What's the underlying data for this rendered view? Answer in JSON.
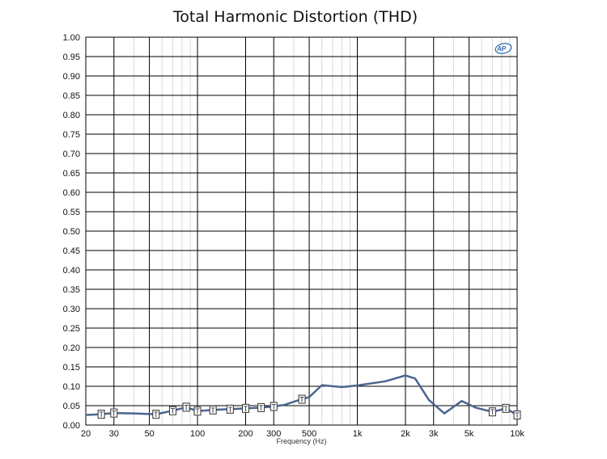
{
  "chart_data": {
    "type": "line",
    "title": "Total Harmonic Distortion (THD)",
    "xlabel": "Frequency (Hz)",
    "ylabel": "",
    "x_scale": "log",
    "xlim": [
      20,
      10000
    ],
    "ylim": [
      0,
      1.0
    ],
    "grid": true,
    "x_tick_values": [
      20,
      30,
      50,
      100,
      200,
      300,
      500,
      1000,
      2000,
      3000,
      5000,
      10000
    ],
    "x_tick_labels": [
      "20",
      "30",
      "50",
      "100",
      "200",
      "300",
      "500",
      "1k",
      "2k",
      "3k",
      "5k",
      "10k"
    ],
    "y_tick_labels": [
      "1.00",
      "0.95",
      "0.90",
      "0.85",
      "0.80",
      "0.75",
      "0.70",
      "0.65",
      "0.60",
      "0.55",
      "0.50",
      "0.45",
      "0.40",
      "0.35",
      "0.30",
      "0.25",
      "0.20",
      "0.15",
      "0.10",
      "0.05",
      "0.00"
    ],
    "line_color": "#4a6590",
    "marker_label": "T",
    "series": [
      {
        "x": [
          20,
          25,
          30,
          40,
          55,
          70,
          85,
          100,
          125,
          160,
          200,
          250,
          300,
          350,
          420,
          500,
          600,
          800,
          1000,
          1500,
          2000,
          2300,
          2800,
          3500,
          4500,
          5500,
          7000,
          8500,
          10000
        ],
        "values": [
          0.026,
          0.028,
          0.031,
          0.03,
          0.028,
          0.037,
          0.046,
          0.036,
          0.039,
          0.041,
          0.043,
          0.045,
          0.048,
          0.052,
          0.063,
          0.072,
          0.103,
          0.098,
          0.102,
          0.113,
          0.128,
          0.12,
          0.065,
          0.03,
          0.062,
          0.045,
          0.034,
          0.043,
          0.026
        ],
        "markers_x": [
          25,
          30,
          55,
          70,
          85,
          100,
          125,
          160,
          200,
          250,
          300,
          450,
          7000,
          8500,
          10000
        ]
      }
    ]
  },
  "logo": "AP"
}
